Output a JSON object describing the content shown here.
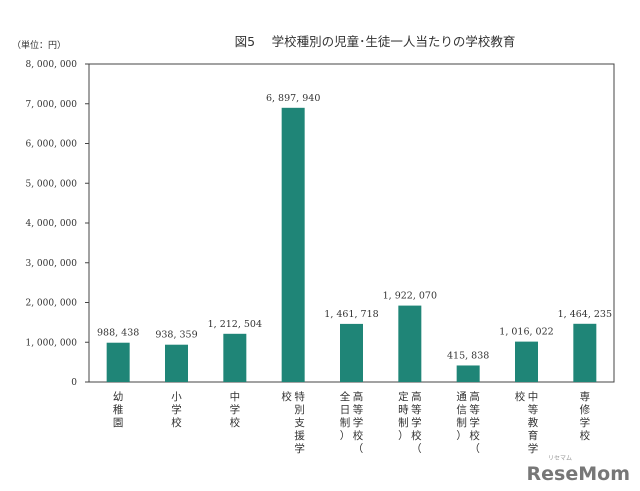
{
  "chart_data": {
    "type": "bar",
    "title": "図5　 学校種別の児童･生徒一人当たりの学校教育",
    "unit_label": "（単位：円）",
    "categories": [
      "幼稚園",
      "小学校",
      "中学校",
      "特別支援学校",
      "高等学校（全日制）",
      "高等学校（定時制）",
      "高等学校（通信制）",
      "中等教育学校",
      "専修学校"
    ],
    "values": [
      988438,
      938359,
      1212504,
      6897940,
      1461718,
      1922070,
      415838,
      1016022,
      1464235
    ],
    "value_labels": [
      "988, 438",
      "938, 359",
      "1, 212, 504",
      "6, 897, 940",
      "1, 461, 718",
      "1, 922, 070",
      "415, 838",
      "1, 016, 022",
      "1, 464, 235"
    ],
    "ylim": [
      0,
      8000000
    ],
    "y_ticks": [
      0,
      1000000,
      2000000,
      3000000,
      4000000,
      5000000,
      6000000,
      7000000,
      8000000
    ],
    "y_tick_labels": [
      "0",
      "1, 000, 000",
      "2, 000, 000",
      "3, 000, 000",
      "4, 000, 000",
      "5, 000, 000",
      "6, 000, 000",
      "7, 000, 000",
      "8, 000, 000"
    ],
    "bar_color": "#1f8577",
    "grid": false,
    "legend": "none"
  },
  "watermark": {
    "text": "ReseMom",
    "small": "リセマム"
  }
}
